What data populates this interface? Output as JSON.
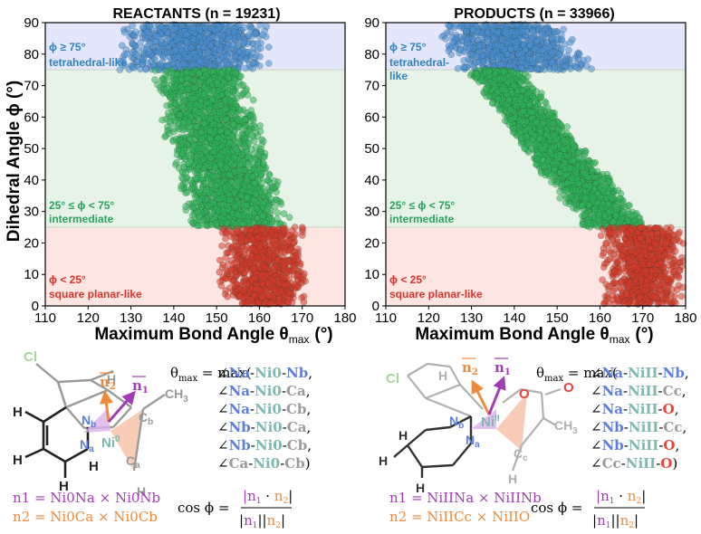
{
  "chart_data": [
    {
      "type": "scatter",
      "title": "REACTANTS (n = 19231)",
      "xlabel_main": "Maximum Bond Angle θ",
      "xlabel_sub": "max",
      "xlabel_unit": "(°)",
      "ylabel": "Dihedral Angle ϕ (°)",
      "xlim": [
        110,
        180
      ],
      "ylim": [
        0,
        90
      ],
      "xticks": [
        "110",
        "120",
        "130",
        "140",
        "150",
        "160",
        "170",
        "180"
      ],
      "yticks": [
        "0",
        "10",
        "20",
        "30",
        "40",
        "50",
        "60",
        "70",
        "80",
        "90"
      ],
      "regions": [
        {
          "label": "ϕ < 25°",
          "sublabel": "square planar-like",
          "ymin": 0,
          "ymax": 25,
          "color": "#d9342b",
          "fill": "#fde5e2"
        },
        {
          "label": "25° ≤ ϕ < 75°",
          "sublabel": "intermediate",
          "ymin": 25,
          "ymax": 75,
          "color": "#2ca25f",
          "fill": "#e6f3e6"
        },
        {
          "label": "ϕ ≥ 75°",
          "sublabel": "tetrahedral-like",
          "ymin": 75,
          "ymax": 90,
          "color": "#3182bd",
          "fill": "#e4e6fb"
        }
      ],
      "clusters": [
        {
          "name": "tetrahedral",
          "color": "#4a8fd1",
          "x_range": [
            126,
            163
          ],
          "y_range": [
            75,
            90
          ]
        },
        {
          "name": "intermediate",
          "color": "#2fb35a",
          "x_range": [
            133,
            174
          ],
          "y_range": [
            25,
            75
          ]
        },
        {
          "name": "square-planar",
          "color": "#d63b2a",
          "x_range": [
            149,
            172
          ],
          "y_range": [
            0,
            25
          ]
        }
      ]
    },
    {
      "type": "scatter",
      "title": "PRODUCTS (n = 33966)",
      "xlabel_main": "Maximum Bond Angle θ",
      "xlabel_sub": "max",
      "xlabel_unit": "(°)",
      "ylabel": "",
      "xlim": [
        110,
        180
      ],
      "ylim": [
        0,
        90
      ],
      "xticks": [
        "110",
        "120",
        "130",
        "140",
        "150",
        "160",
        "170",
        "180"
      ],
      "yticks": [
        "0",
        "10",
        "20",
        "30",
        "40",
        "50",
        "60",
        "70",
        "80",
        "90"
      ],
      "regions": [
        {
          "label": "ϕ < 25°",
          "sublabel": "square planar-like",
          "ymin": 0,
          "ymax": 25,
          "color": "#d9342b",
          "fill": "#fde5e2"
        },
        {
          "label": "25° ≤ ϕ < 75°",
          "sublabel": "intermediate",
          "ymin": 25,
          "ymax": 75,
          "color": "#2ca25f",
          "fill": "#e6f3e6"
        },
        {
          "label": "ϕ ≥ 75°",
          "sublabel": "tetrahedral-",
          "sublabel2": "like",
          "ymin": 75,
          "ymax": 90,
          "color": "#3182bd",
          "fill": "#e4e6fb"
        }
      ],
      "clusters": [
        {
          "name": "tetrahedral",
          "color": "#4a8fd1",
          "x_range": [
            121,
            165
          ],
          "y_range": [
            75,
            90
          ]
        },
        {
          "name": "intermediate",
          "color": "#2fb35a",
          "x_range": [
            126,
            172
          ],
          "y_range": [
            25,
            75
          ]
        },
        {
          "name": "square-planar",
          "color": "#d63b2a",
          "x_range": [
            160,
            180
          ],
          "y_range": [
            0,
            25
          ]
        }
      ]
    }
  ],
  "schemes": {
    "left": {
      "atoms": {
        "cl": "Cl",
        "h": "H",
        "ch3": "CH",
        "ch3_sub": "3",
        "nb": "N",
        "nb_sub": "b",
        "na": "N",
        "na_sub": "a",
        "ni": "Ni",
        "ni_sup": "0",
        "cb": "C",
        "cb_sub": "b",
        "ca": "C",
        "ca_sub": "a"
      },
      "theta_prefix": "θ",
      "theta_sub": "max",
      "theta_eq": " = max(",
      "angles": [
        "∠Na-Ni0-Nb,",
        "∠Na-Ni0-Ca,",
        "∠Na-Ni0-Cb,",
        "∠Nb-Ni0-Ca,",
        "∠Nb-Ni0-Cb,",
        "∠Ca-Ni0-Cb)"
      ],
      "n1_def": "n1 = Ni0Na × Ni0Nb",
      "n2_def": "n2 = Ni0Ca × Ni0Cb"
    },
    "right": {
      "atoms": {
        "cl": "Cl",
        "h": "H",
        "ch3": "CH",
        "ch3_sub": "3",
        "o1": "O",
        "o2": "O",
        "nb": "N",
        "nb_sub": "b",
        "na": "N",
        "na_sub": "a",
        "ni": "Ni",
        "ni_sup": "II",
        "cc": "C",
        "cc_sub": "c"
      },
      "theta_prefix": "θ",
      "theta_sub": "max",
      "theta_eq": " = max(",
      "angles": [
        "∠Na-NiII-Nb,",
        "∠Na-NiII-Cc,",
        "∠Na-NiII-O,",
        "∠Nb-NiII-Cc,",
        "∠Nb-NiII-O,",
        "∠Cc-NiII-O)"
      ],
      "n1_def": "n1 = NiIINa × NiIINb",
      "n2_def": "n2 = NiIICc × NiIIO"
    },
    "cos_label": "cos ϕ =",
    "vec_n1": "n",
    "vec_n1_sub": "1",
    "vec_n2": "n",
    "vec_n2_sub": "2",
    "colors": {
      "purple": "#a03cb4",
      "orange": "#ef8a3c",
      "teal": "#7fb8b0",
      "n_blue": "#5b7fe0",
      "gray": "#9a9a9a",
      "o_red": "#e8453c",
      "cl_green": "#a8d49a"
    }
  }
}
